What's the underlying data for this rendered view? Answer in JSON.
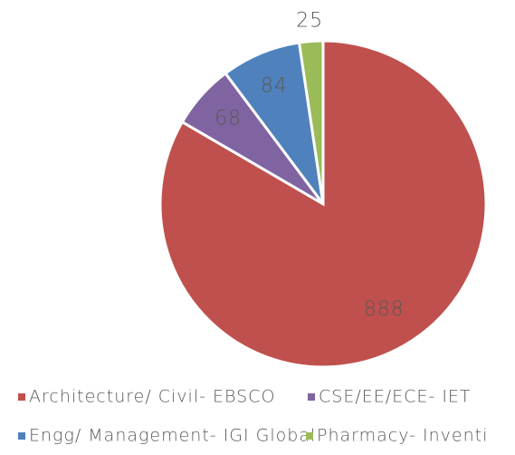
{
  "chart_data": {
    "type": "pie",
    "categories": [
      "Architecture/ Civil- EBSCO",
      "CSE/EE/ECE- IET",
      "Engg/ Management- IGI Global",
      "Pharmacy- Inventi"
    ],
    "values": [
      888,
      68,
      84,
      25
    ],
    "colors": [
      "#c0504d",
      "#8064a2",
      "#4f81bd",
      "#9bbb59"
    ],
    "legend": "bottom"
  }
}
